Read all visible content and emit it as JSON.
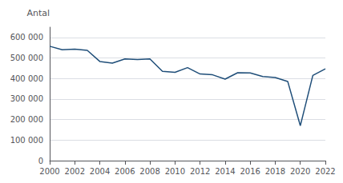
{
  "chart_data": {
    "type": "line",
    "ylabel": "Antal",
    "x": [
      2000,
      2001,
      2002,
      2003,
      2004,
      2005,
      2006,
      2007,
      2008,
      2009,
      2010,
      2011,
      2012,
      2013,
      2014,
      2015,
      2016,
      2017,
      2018,
      2019,
      2020,
      2021,
      2022
    ],
    "values": [
      557000,
      540000,
      543000,
      537000,
      483000,
      475000,
      495000,
      492000,
      495000,
      435000,
      430000,
      453000,
      422000,
      418000,
      397000,
      428000,
      427000,
      410000,
      405000,
      385000,
      170000,
      415000,
      447000
    ],
    "color": "#1F4E79",
    "xlim": [
      2000,
      2022
    ],
    "xticks": [
      2000,
      2002,
      2004,
      2006,
      2008,
      2010,
      2012,
      2014,
      2016,
      2018,
      2020,
      2022
    ],
    "ylim": [
      0,
      650000
    ],
    "yticks": [
      0,
      {
        "value": 100000,
        "label": "100 000"
      },
      {
        "value": 200000,
        "label": "200 000"
      },
      {
        "value": 300000,
        "label": "300 000"
      },
      {
        "value": 400000,
        "label": "400 000"
      },
      {
        "value": 500000,
        "label": "500 000"
      },
      {
        "value": 600000,
        "label": "600 000"
      }
    ],
    "grid": true
  }
}
